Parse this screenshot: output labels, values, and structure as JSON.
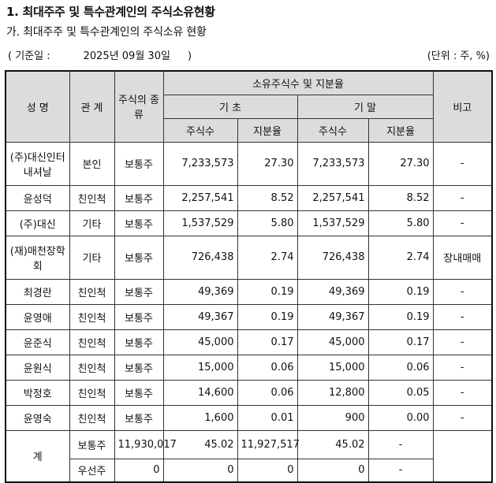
{
  "heading": "1. 최대주주 및 특수관계인의 주식소유현황",
  "subheading": "가. 최대주주 및 특수관계인의 주식소유 현황",
  "basis": {
    "open": "( 기준일 :",
    "date": "2025년 09월 30일",
    "close": ")"
  },
  "unit": "(단위 : 주, %)",
  "headers": {
    "name": "성 명",
    "relation": "관 계",
    "stock_type": "주식의 종류",
    "ownership": "소유주식수 및 지분율",
    "begin": "기 초",
    "end": "기 말",
    "shares": "주식수",
    "ratio": "지분율",
    "note": "비고"
  },
  "rows": [
    {
      "name": "(주)대신인터내셔날",
      "relation": "본인",
      "type": "보통주",
      "begin_shares": "7,233,573",
      "begin_ratio": "27.30",
      "end_shares": "7,233,573",
      "end_ratio": "27.30",
      "note": "-"
    },
    {
      "name": "윤성덕",
      "relation": "친인척",
      "type": "보통주",
      "begin_shares": "2,257,541",
      "begin_ratio": "8.52",
      "end_shares": "2,257,541",
      "end_ratio": "8.52",
      "note": "-"
    },
    {
      "name": "(주)대신",
      "relation": "기타",
      "type": "보통주",
      "begin_shares": "1,537,529",
      "begin_ratio": "5.80",
      "end_shares": "1,537,529",
      "end_ratio": "5.80",
      "note": "-"
    },
    {
      "name": "(재)매천장학회",
      "relation": "기타",
      "type": "보통주",
      "begin_shares": "726,438",
      "begin_ratio": "2.74",
      "end_shares": "726,438",
      "end_ratio": "2.74",
      "note": "장내매매"
    },
    {
      "name": "최경란",
      "relation": "친인척",
      "type": "보통주",
      "begin_shares": "49,369",
      "begin_ratio": "0.19",
      "end_shares": "49,369",
      "end_ratio": "0.19",
      "note": "-"
    },
    {
      "name": "윤영애",
      "relation": "친인척",
      "type": "보통주",
      "begin_shares": "49,367",
      "begin_ratio": "0.19",
      "end_shares": "49,367",
      "end_ratio": "0.19",
      "note": "-"
    },
    {
      "name": "윤준식",
      "relation": "친인척",
      "type": "보통주",
      "begin_shares": "45,000",
      "begin_ratio": "0.17",
      "end_shares": "45,000",
      "end_ratio": "0.17",
      "note": "-"
    },
    {
      "name": "윤원식",
      "relation": "친인척",
      "type": "보통주",
      "begin_shares": "15,000",
      "begin_ratio": "0.06",
      "end_shares": "15,000",
      "end_ratio": "0.06",
      "note": "-"
    },
    {
      "name": "박정호",
      "relation": "친인척",
      "type": "보통주",
      "begin_shares": "14,600",
      "begin_ratio": "0.06",
      "end_shares": "12,800",
      "end_ratio": "0.05",
      "note": "-"
    },
    {
      "name": "윤영숙",
      "relation": "친인척",
      "type": "보통주",
      "begin_shares": "1,600",
      "begin_ratio": "0.01",
      "end_shares": "900",
      "end_ratio": "0.00",
      "note": "-"
    }
  ],
  "total": {
    "label": "계",
    "rows": [
      {
        "type": "보통주",
        "begin_shares": "11,930,017",
        "begin_ratio": "45.02",
        "end_shares": "11,927,517",
        "end_ratio": "45.02",
        "note": "-"
      },
      {
        "type": "우선주",
        "begin_shares": "0",
        "begin_ratio": "0",
        "end_shares": "0",
        "end_ratio": "0",
        "note": "-"
      }
    ]
  }
}
